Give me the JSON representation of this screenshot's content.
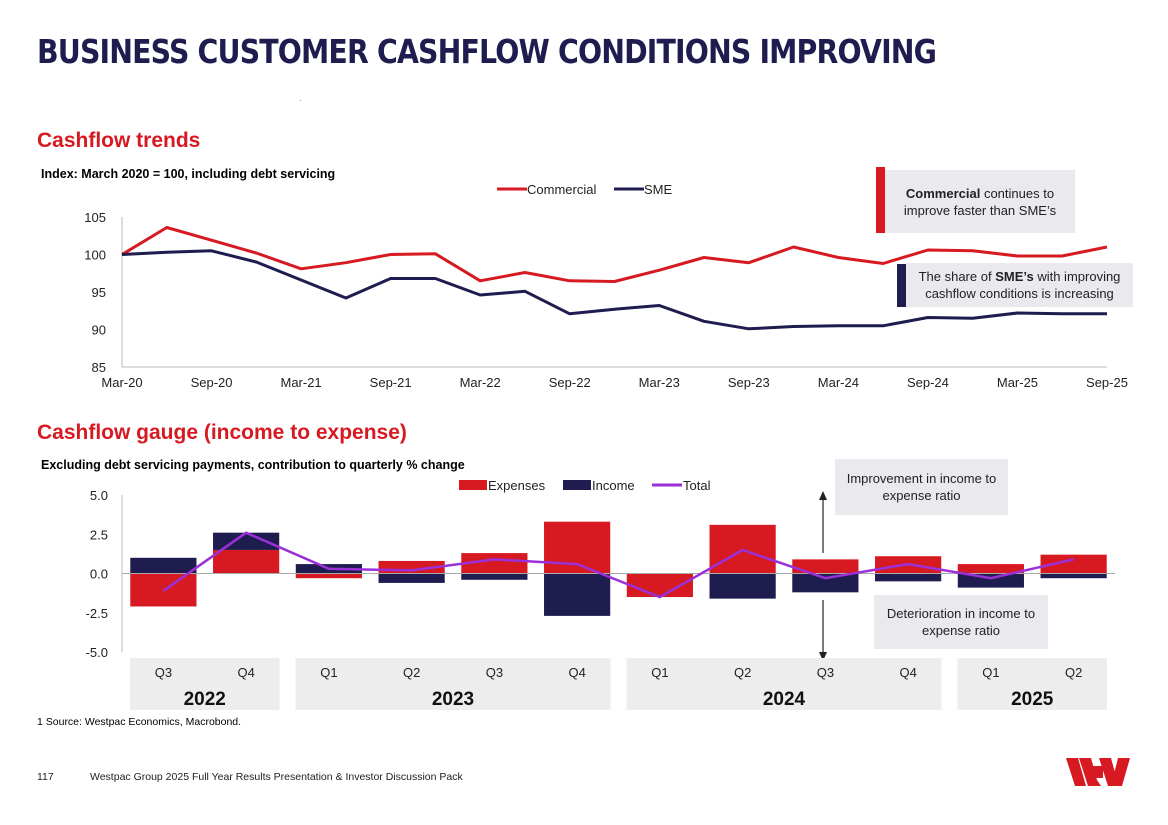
{
  "title": "BUSINESS CUSTOMER CASHFLOW CONDITIONS IMPROVING",
  "colors": {
    "navy": "#1f1c4f",
    "red": "#d71a21",
    "purple": "#9b30d9",
    "callout_bg": "#e9e9ee",
    "year_bg": "#ededed"
  },
  "section1": {
    "heading": "Cashflow trends",
    "subtitle": "Index: March 2020 = 100, including debt servicing",
    "callout_commercial": {
      "bold": "Commercial",
      "rest": " continues to improve faster than SME’s"
    },
    "callout_sme": {
      "pre": "The share of ",
      "bold": "SME’s",
      "rest": " with improving cashflow conditions is increasing"
    }
  },
  "section2": {
    "heading": "Cashflow gauge (income to expense)",
    "subtitle": "Excluding debt servicing payments, contribution to quarterly % change",
    "callout_up": "Improvement in income to expense ratio",
    "callout_down": "Deterioration in income to expense ratio"
  },
  "source": "1 Source: Westpac Economics, Macrobond.",
  "footer": {
    "page": "117",
    "text": "Westpac Group 2025 Full Year Results Presentation & Investor Discussion Pack"
  },
  "chart_data": [
    {
      "type": "line",
      "ylim": [
        85,
        105
      ],
      "yticks": [
        85,
        90,
        95,
        100,
        105
      ],
      "xtick_labels": [
        "Mar-20",
        "Sep-20",
        "Mar-21",
        "Sep-21",
        "Mar-22",
        "Sep-22",
        "Mar-23",
        "Sep-23",
        "Mar-24",
        "Sep-24",
        "Mar-25",
        "Sep-25"
      ],
      "x": [
        0,
        1,
        2,
        3,
        4,
        5,
        6,
        7,
        8,
        9,
        10,
        11,
        12,
        13,
        14,
        15,
        16,
        17,
        18,
        19,
        20,
        21,
        22
      ],
      "series": [
        {
          "name": "Commercial",
          "color": "#d71a21",
          "values": [
            100,
            103.6,
            101.9,
            100.2,
            98.1,
            98.9,
            100,
            100.1,
            96.5,
            97.6,
            96.5,
            96.4,
            97.9,
            99.6,
            98.9,
            101,
            99.6,
            98.8,
            100.6,
            100.5,
            99.8,
            99.8,
            101
          ]
        },
        {
          "name": "SME",
          "color": "#1f1c4f",
          "values": [
            100,
            100.3,
            100.5,
            99,
            96.6,
            94.2,
            96.8,
            96.8,
            94.6,
            95.1,
            92.1,
            92.7,
            93.2,
            91.1,
            90.1,
            90.4,
            90.5,
            90.5,
            91.6,
            91.5,
            92.2,
            92.1,
            92.1
          ]
        }
      ]
    },
    {
      "type": "bar",
      "ylim": [
        -5,
        5
      ],
      "yticks": [
        "5.0",
        "2.5",
        "0.0",
        "-2.5",
        "-5.0"
      ],
      "ytick_values": [
        5,
        2.5,
        0,
        -2.5,
        -5
      ],
      "categories": [
        "Q3",
        "Q4",
        "Q1",
        "Q2",
        "Q3",
        "Q4",
        "Q1",
        "Q2",
        "Q3",
        "Q4",
        "Q1",
        "Q2"
      ],
      "years": [
        {
          "label": "2022",
          "start": 0,
          "end": 1
        },
        {
          "label": "2023",
          "start": 2,
          "end": 5
        },
        {
          "label": "2024",
          "start": 6,
          "end": 9
        },
        {
          "label": "2025",
          "start": 10,
          "end": 11
        }
      ],
      "series": [
        {
          "name": "Expenses",
          "kind": "bar",
          "color": "#d71a21",
          "values": [
            -2.1,
            1.5,
            -0.3,
            0.8,
            1.3,
            3.3,
            -1.5,
            3.1,
            0.9,
            1.1,
            0.6,
            1.2
          ]
        },
        {
          "name": "Income",
          "kind": "bar",
          "color": "#1f1c4f",
          "values": [
            1,
            1.1,
            0.6,
            -0.6,
            -0.4,
            -2.7,
            0,
            -1.6,
            -1.2,
            -0.5,
            -0.9,
            -0.3
          ]
        },
        {
          "name": "Total",
          "kind": "line",
          "color": "#9b30d9",
          "values": [
            -1.1,
            2.6,
            0.3,
            0.2,
            0.9,
            0.6,
            -1.5,
            1.5,
            -0.3,
            0.6,
            -0.3,
            0.9
          ]
        }
      ]
    }
  ]
}
